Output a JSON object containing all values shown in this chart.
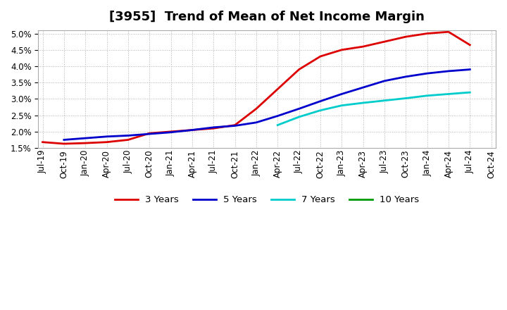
{
  "title": "[3955]  Trend of Mean of Net Income Margin",
  "background_color": "#ffffff",
  "plot_bg_color": "#ffffff",
  "grid_color": "#aaaaaa",
  "ylim": [
    0.015,
    0.051
  ],
  "yticks": [
    0.015,
    0.02,
    0.025,
    0.03,
    0.035,
    0.04,
    0.045,
    0.05
  ],
  "series": {
    "3 Years": {
      "color": "#dd0000",
      "linewidth": 2.0,
      "data_x": [
        "Jul-19",
        "Oct-19",
        "Jan-20",
        "Apr-20",
        "Jul-20",
        "Oct-20",
        "Jan-21",
        "Apr-21",
        "Jul-21",
        "Oct-21",
        "Jan-22",
        "Apr-22",
        "Jul-22",
        "Oct-22",
        "Jan-23",
        "Apr-23",
        "Jul-23",
        "Oct-23",
        "Jan-24",
        "Apr-24",
        "Jul-24",
        "Oct-24"
      ],
      "data_y": [
        0.0168,
        0.0163,
        0.0165,
        0.0168,
        0.0175,
        0.0195,
        0.02,
        0.0205,
        0.021,
        0.022,
        0.027,
        0.033,
        0.039,
        0.043,
        0.045,
        0.046,
        0.0475,
        0.049,
        0.05,
        0.0505,
        0.0465,
        null
      ]
    },
    "5 Years": {
      "color": "#0000cc",
      "linewidth": 2.0,
      "data_x": [
        "Jul-19",
        "Oct-19",
        "Jan-20",
        "Apr-20",
        "Jul-20",
        "Oct-20",
        "Jan-21",
        "Apr-21",
        "Jul-21",
        "Oct-21",
        "Jan-22",
        "Apr-22",
        "Jul-22",
        "Oct-22",
        "Jan-23",
        "Apr-23",
        "Jul-23",
        "Oct-23",
        "Jan-24",
        "Apr-24",
        "Jul-24",
        "Oct-24"
      ],
      "data_y": [
        null,
        0.0175,
        0.018,
        0.0185,
        0.0188,
        0.0193,
        0.0198,
        0.0205,
        0.0213,
        0.0218,
        0.0228,
        0.0248,
        0.027,
        0.0293,
        0.0315,
        0.0335,
        0.0355,
        0.0368,
        0.0378,
        0.0385,
        0.039,
        null
      ]
    },
    "7 Years": {
      "color": "#00cccc",
      "linewidth": 2.0,
      "data_x": [
        "Jul-19",
        "Oct-19",
        "Jan-20",
        "Apr-20",
        "Jul-20",
        "Oct-20",
        "Jan-21",
        "Apr-21",
        "Jul-21",
        "Oct-21",
        "Jan-22",
        "Apr-22",
        "Jul-22",
        "Oct-22",
        "Jan-23",
        "Apr-23",
        "Jul-23",
        "Oct-23",
        "Jan-24",
        "Apr-24",
        "Jul-24",
        "Oct-24"
      ],
      "data_y": [
        null,
        null,
        null,
        null,
        null,
        null,
        null,
        null,
        null,
        null,
        null,
        0.022,
        0.0245,
        0.0265,
        0.028,
        0.0288,
        0.0295,
        0.0302,
        0.031,
        0.0315,
        0.032,
        null
      ]
    },
    "10 Years": {
      "color": "#009900",
      "linewidth": 2.0,
      "data_x": [
        "Jul-19",
        "Oct-19",
        "Jan-20",
        "Apr-20",
        "Jul-20",
        "Oct-20",
        "Jan-21",
        "Apr-21",
        "Jul-21",
        "Oct-21",
        "Jan-22",
        "Apr-22",
        "Jul-22",
        "Oct-22",
        "Jan-23",
        "Apr-23",
        "Jul-23",
        "Oct-23",
        "Jan-24",
        "Apr-24",
        "Jul-24",
        "Oct-24"
      ],
      "data_y": [
        null,
        null,
        null,
        null,
        null,
        null,
        null,
        null,
        null,
        null,
        null,
        null,
        null,
        null,
        null,
        null,
        null,
        null,
        null,
        null,
        null,
        null
      ]
    }
  },
  "legend_labels": [
    "3 Years",
    "5 Years",
    "7 Years",
    "10 Years"
  ],
  "legend_colors": [
    "#dd0000",
    "#0000cc",
    "#00cccc",
    "#009900"
  ],
  "xtick_labels": [
    "Jul-19",
    "Oct-19",
    "Jan-20",
    "Apr-20",
    "Jul-20",
    "Oct-20",
    "Jan-21",
    "Apr-21",
    "Jul-21",
    "Oct-21",
    "Jan-22",
    "Apr-22",
    "Jul-22",
    "Oct-22",
    "Jan-23",
    "Apr-23",
    "Jul-23",
    "Oct-23",
    "Jan-24",
    "Apr-24",
    "Jul-24",
    "Oct-24"
  ],
  "title_fontsize": 13,
  "tick_fontsize": 8.5,
  "legend_fontsize": 9.5
}
